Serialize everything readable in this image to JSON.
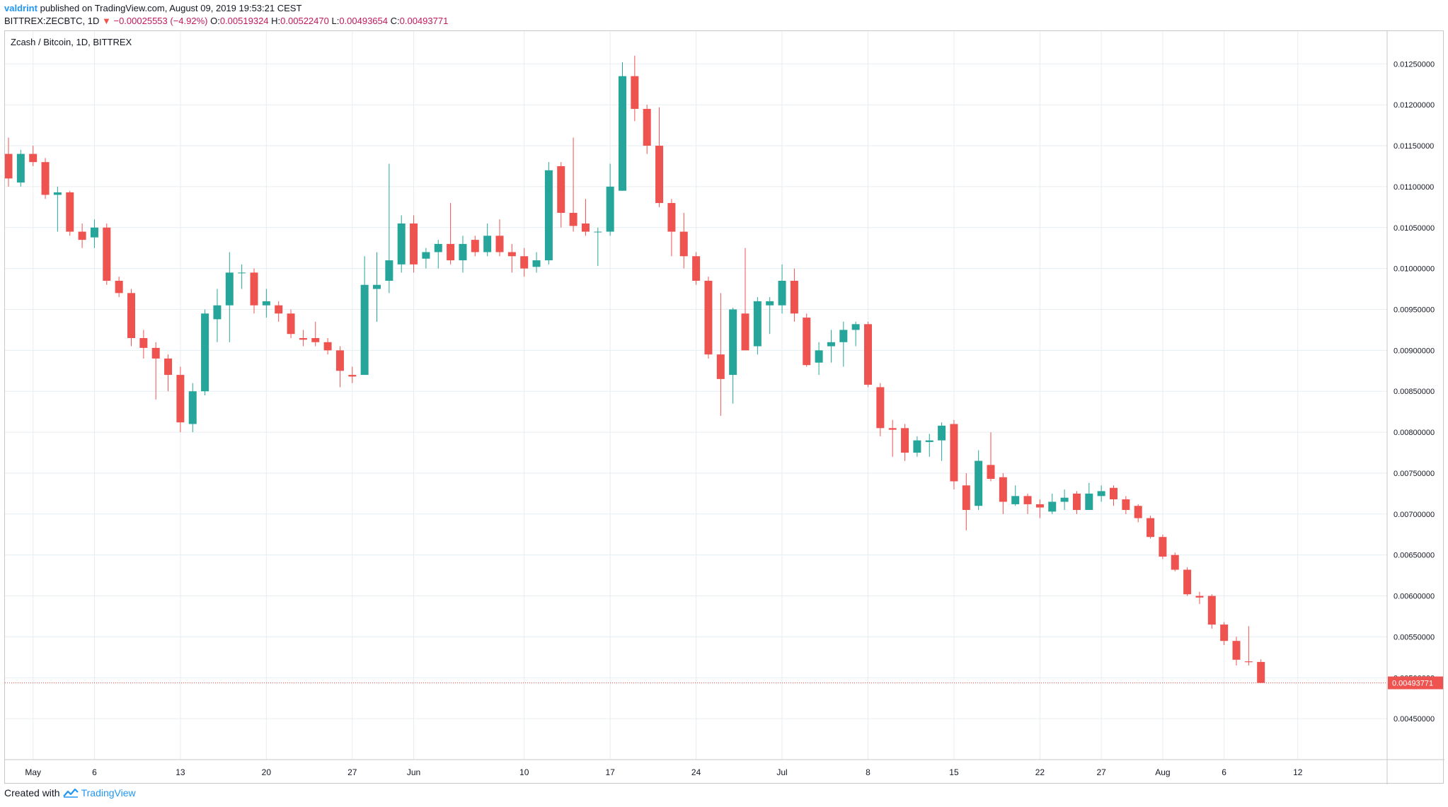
{
  "header": {
    "author": "valdrint",
    "published": "published on TradingView.com, August 09, 2019 19:53:21 CEST"
  },
  "info": {
    "symbol": "BITTREX:ZECBTC, 1D",
    "change": "−0.00025553 (−4.92%)",
    "o_label": "O:",
    "o_value": "0.00519324",
    "h_label": "H:",
    "h_value": "0.00522470",
    "l_label": "L:",
    "l_value": "0.00493654",
    "c_label": "C:",
    "c_value": "0.00493771"
  },
  "footer": {
    "created_with": "Created with",
    "brand": "TradingView"
  },
  "colors": {
    "up": "#26a69a",
    "down": "#ef5350",
    "grid": "#e6eef2",
    "price_line": "#ef5350"
  },
  "chart_data": {
    "type": "candlestick",
    "title": "Zcash / Bitcoin, 1D, BITTREX",
    "ylim": [
      0.004,
      0.0129
    ],
    "y_ticks": [
      0.0045,
      0.005,
      0.0055,
      0.006,
      0.0065,
      0.007,
      0.0075,
      0.008,
      0.0085,
      0.009,
      0.0095,
      0.01,
      0.0105,
      0.011,
      0.0115,
      0.012,
      0.0125
    ],
    "y_tick_labels": [
      "0.00450000",
      "0.00500000",
      "0.00550000",
      "0.00600000",
      "0.00650000",
      "0.00700000",
      "0.00750000",
      "0.00800000",
      "0.00850000",
      "0.00900000",
      "0.00950000",
      "0.01000000",
      "0.01050000",
      "0.01100000",
      "0.01150000",
      "0.01200000",
      "0.01250000"
    ],
    "x_start": "2019-04-29",
    "x_ticks": [
      {
        "date": "2019-05-01",
        "label": "May"
      },
      {
        "date": "2019-05-06",
        "label": "6"
      },
      {
        "date": "2019-05-13",
        "label": "13"
      },
      {
        "date": "2019-05-20",
        "label": "20"
      },
      {
        "date": "2019-05-27",
        "label": "27"
      },
      {
        "date": "2019-06-01",
        "label": "Jun"
      },
      {
        "date": "2019-06-10",
        "label": "10"
      },
      {
        "date": "2019-06-17",
        "label": "17"
      },
      {
        "date": "2019-06-24",
        "label": "24"
      },
      {
        "date": "2019-07-01",
        "label": "Jul"
      },
      {
        "date": "2019-07-08",
        "label": "8"
      },
      {
        "date": "2019-07-15",
        "label": "15"
      },
      {
        "date": "2019-07-22",
        "label": "22"
      },
      {
        "date": "2019-07-27",
        "label": "27"
      },
      {
        "date": "2019-08-01",
        "label": "Aug"
      },
      {
        "date": "2019-08-06",
        "label": "6"
      },
      {
        "date": "2019-08-12",
        "label": "12"
      }
    ],
    "last_price": 0.00493771,
    "last_price_label": "0.00493771",
    "candles": [
      {
        "d": "2019-04-29",
        "o": 0.0114,
        "h": 0.0116,
        "l": 0.011,
        "c": 0.0111
      },
      {
        "d": "2019-04-30",
        "o": 0.01105,
        "h": 0.01145,
        "l": 0.011,
        "c": 0.0114
      },
      {
        "d": "2019-05-01",
        "o": 0.0114,
        "h": 0.0115,
        "l": 0.01125,
        "c": 0.0113
      },
      {
        "d": "2019-05-02",
        "o": 0.0113,
        "h": 0.01135,
        "l": 0.01085,
        "c": 0.0109
      },
      {
        "d": "2019-05-03",
        "o": 0.0109,
        "h": 0.011,
        "l": 0.01045,
        "c": 0.01093
      },
      {
        "d": "2019-05-04",
        "o": 0.01093,
        "h": 0.01095,
        "l": 0.0104,
        "c": 0.01045
      },
      {
        "d": "2019-05-05",
        "o": 0.01045,
        "h": 0.01055,
        "l": 0.01025,
        "c": 0.01035
      },
      {
        "d": "2019-05-06",
        "o": 0.01038,
        "h": 0.0106,
        "l": 0.01025,
        "c": 0.0105
      },
      {
        "d": "2019-05-07",
        "o": 0.0105,
        "h": 0.01055,
        "l": 0.0098,
        "c": 0.00985
      },
      {
        "d": "2019-05-08",
        "o": 0.00985,
        "h": 0.0099,
        "l": 0.00965,
        "c": 0.0097
      },
      {
        "d": "2019-05-09",
        "o": 0.0097,
        "h": 0.00975,
        "l": 0.00905,
        "c": 0.00915
      },
      {
        "d": "2019-05-10",
        "o": 0.00915,
        "h": 0.00925,
        "l": 0.0089,
        "c": 0.00903
      },
      {
        "d": "2019-05-11",
        "o": 0.00903,
        "h": 0.0091,
        "l": 0.0084,
        "c": 0.0089
      },
      {
        "d": "2019-05-12",
        "o": 0.0089,
        "h": 0.00895,
        "l": 0.0085,
        "c": 0.0087
      },
      {
        "d": "2019-05-13",
        "o": 0.0087,
        "h": 0.0088,
        "l": 0.008,
        "c": 0.00812
      },
      {
        "d": "2019-05-14",
        "o": 0.0081,
        "h": 0.0086,
        "l": 0.008,
        "c": 0.0085
      },
      {
        "d": "2019-05-15",
        "o": 0.0085,
        "h": 0.0095,
        "l": 0.00845,
        "c": 0.00945
      },
      {
        "d": "2019-05-16",
        "o": 0.00938,
        "h": 0.00975,
        "l": 0.0091,
        "c": 0.00955
      },
      {
        "d": "2019-05-17",
        "o": 0.00955,
        "h": 0.0102,
        "l": 0.0091,
        "c": 0.00995
      },
      {
        "d": "2019-05-18",
        "o": 0.00995,
        "h": 0.01005,
        "l": 0.00975,
        "c": 0.00995
      },
      {
        "d": "2019-05-19",
        "o": 0.00995,
        "h": 0.01,
        "l": 0.00945,
        "c": 0.00955
      },
      {
        "d": "2019-05-20",
        "o": 0.00955,
        "h": 0.00975,
        "l": 0.0094,
        "c": 0.0096
      },
      {
        "d": "2019-05-21",
        "o": 0.00955,
        "h": 0.0096,
        "l": 0.00935,
        "c": 0.00945
      },
      {
        "d": "2019-05-22",
        "o": 0.00945,
        "h": 0.0095,
        "l": 0.00915,
        "c": 0.0092
      },
      {
        "d": "2019-05-23",
        "o": 0.00915,
        "h": 0.00925,
        "l": 0.00905,
        "c": 0.00913
      },
      {
        "d": "2019-05-24",
        "o": 0.00915,
        "h": 0.00935,
        "l": 0.00905,
        "c": 0.0091
      },
      {
        "d": "2019-05-25",
        "o": 0.0091,
        "h": 0.00915,
        "l": 0.00895,
        "c": 0.009
      },
      {
        "d": "2019-05-26",
        "o": 0.009,
        "h": 0.00905,
        "l": 0.00855,
        "c": 0.00875
      },
      {
        "d": "2019-05-27",
        "o": 0.0087,
        "h": 0.0088,
        "l": 0.0086,
        "c": 0.00868
      },
      {
        "d": "2019-05-28",
        "o": 0.0087,
        "h": 0.01015,
        "l": 0.0087,
        "c": 0.0098
      },
      {
        "d": "2019-05-29",
        "o": 0.00975,
        "h": 0.0102,
        "l": 0.00935,
        "c": 0.0098
      },
      {
        "d": "2019-05-30",
        "o": 0.00985,
        "h": 0.01128,
        "l": 0.0097,
        "c": 0.0101
      },
      {
        "d": "2019-05-31",
        "o": 0.01005,
        "h": 0.01065,
        "l": 0.00995,
        "c": 0.01055
      },
      {
        "d": "2019-06-01",
        "o": 0.01055,
        "h": 0.01065,
        "l": 0.00995,
        "c": 0.01005
      },
      {
        "d": "2019-06-02",
        "o": 0.01012,
        "h": 0.01025,
        "l": 0.01,
        "c": 0.0102
      },
      {
        "d": "2019-06-03",
        "o": 0.0102,
        "h": 0.01035,
        "l": 0.01,
        "c": 0.0103
      },
      {
        "d": "2019-06-04",
        "o": 0.0103,
        "h": 0.0108,
        "l": 0.01005,
        "c": 0.0101
      },
      {
        "d": "2019-06-05",
        "o": 0.0101,
        "h": 0.0104,
        "l": 0.00995,
        "c": 0.0103
      },
      {
        "d": "2019-06-06",
        "o": 0.01035,
        "h": 0.0104,
        "l": 0.01015,
        "c": 0.0102
      },
      {
        "d": "2019-06-07",
        "o": 0.0102,
        "h": 0.01055,
        "l": 0.01015,
        "c": 0.0104
      },
      {
        "d": "2019-06-08",
        "o": 0.0104,
        "h": 0.0106,
        "l": 0.01015,
        "c": 0.0102
      },
      {
        "d": "2019-06-09",
        "o": 0.0102,
        "h": 0.0103,
        "l": 0.00995,
        "c": 0.01015
      },
      {
        "d": "2019-06-10",
        "o": 0.01015,
        "h": 0.01025,
        "l": 0.0099,
        "c": 0.01
      },
      {
        "d": "2019-06-11",
        "o": 0.01002,
        "h": 0.0102,
        "l": 0.00995,
        "c": 0.0101
      },
      {
        "d": "2019-06-12",
        "o": 0.0101,
        "h": 0.0113,
        "l": 0.01005,
        "c": 0.0112
      },
      {
        "d": "2019-06-13",
        "o": 0.01125,
        "h": 0.0113,
        "l": 0.0105,
        "c": 0.01068
      },
      {
        "d": "2019-06-14",
        "o": 0.01068,
        "h": 0.0116,
        "l": 0.01045,
        "c": 0.01052
      },
      {
        "d": "2019-06-15",
        "o": 0.01055,
        "h": 0.01085,
        "l": 0.0104,
        "c": 0.01045
      },
      {
        "d": "2019-06-16",
        "o": 0.01045,
        "h": 0.0105,
        "l": 0.01003,
        "c": 0.01045
      },
      {
        "d": "2019-06-17",
        "o": 0.01045,
        "h": 0.01128,
        "l": 0.0104,
        "c": 0.011
      },
      {
        "d": "2019-06-18",
        "o": 0.01095,
        "h": 0.01252,
        "l": 0.01095,
        "c": 0.01235
      },
      {
        "d": "2019-06-19",
        "o": 0.01235,
        "h": 0.0126,
        "l": 0.0118,
        "c": 0.01195
      },
      {
        "d": "2019-06-20",
        "o": 0.01195,
        "h": 0.012,
        "l": 0.0114,
        "c": 0.0115
      },
      {
        "d": "2019-06-21",
        "o": 0.0115,
        "h": 0.01197,
        "l": 0.01075,
        "c": 0.0108
      },
      {
        "d": "2019-06-22",
        "o": 0.0108,
        "h": 0.01085,
        "l": 0.01015,
        "c": 0.01045
      },
      {
        "d": "2019-06-23",
        "o": 0.01045,
        "h": 0.01068,
        "l": 0.01,
        "c": 0.01015
      },
      {
        "d": "2019-06-24",
        "o": 0.01015,
        "h": 0.0102,
        "l": 0.0098,
        "c": 0.00985
      },
      {
        "d": "2019-06-25",
        "o": 0.00985,
        "h": 0.0099,
        "l": 0.0089,
        "c": 0.00895
      },
      {
        "d": "2019-06-26",
        "o": 0.00895,
        "h": 0.0097,
        "l": 0.0082,
        "c": 0.00865
      },
      {
        "d": "2019-06-27",
        "o": 0.0087,
        "h": 0.00952,
        "l": 0.00835,
        "c": 0.0095
      },
      {
        "d": "2019-06-28",
        "o": 0.00945,
        "h": 0.01025,
        "l": 0.009,
        "c": 0.009
      },
      {
        "d": "2019-06-29",
        "o": 0.00905,
        "h": 0.00965,
        "l": 0.00895,
        "c": 0.0096
      },
      {
        "d": "2019-06-30",
        "o": 0.00955,
        "h": 0.00965,
        "l": 0.0092,
        "c": 0.0096
      },
      {
        "d": "2019-07-01",
        "o": 0.00955,
        "h": 0.01005,
        "l": 0.00945,
        "c": 0.00985
      },
      {
        "d": "2019-07-02",
        "o": 0.00985,
        "h": 0.01,
        "l": 0.00935,
        "c": 0.00945
      },
      {
        "d": "2019-07-03",
        "o": 0.0094,
        "h": 0.00945,
        "l": 0.0088,
        "c": 0.00882
      },
      {
        "d": "2019-07-04",
        "o": 0.00885,
        "h": 0.0091,
        "l": 0.0087,
        "c": 0.009
      },
      {
        "d": "2019-07-05",
        "o": 0.00905,
        "h": 0.00925,
        "l": 0.00885,
        "c": 0.0091
      },
      {
        "d": "2019-07-06",
        "o": 0.0091,
        "h": 0.00935,
        "l": 0.0088,
        "c": 0.00925
      },
      {
        "d": "2019-07-07",
        "o": 0.00925,
        "h": 0.00935,
        "l": 0.00905,
        "c": 0.00932
      },
      {
        "d": "2019-07-08",
        "o": 0.00932,
        "h": 0.00935,
        "l": 0.00855,
        "c": 0.00858
      },
      {
        "d": "2019-07-09",
        "o": 0.00855,
        "h": 0.0086,
        "l": 0.00795,
        "c": 0.00805
      },
      {
        "d": "2019-07-10",
        "o": 0.00805,
        "h": 0.00815,
        "l": 0.0077,
        "c": 0.00803
      },
      {
        "d": "2019-07-11",
        "o": 0.00805,
        "h": 0.0081,
        "l": 0.00765,
        "c": 0.00775
      },
      {
        "d": "2019-07-12",
        "o": 0.00775,
        "h": 0.00795,
        "l": 0.0077,
        "c": 0.0079
      },
      {
        "d": "2019-07-13",
        "o": 0.00788,
        "h": 0.00798,
        "l": 0.0077,
        "c": 0.0079
      },
      {
        "d": "2019-07-14",
        "o": 0.0079,
        "h": 0.00812,
        "l": 0.00765,
        "c": 0.00808
      },
      {
        "d": "2019-07-15",
        "o": 0.0081,
        "h": 0.00815,
        "l": 0.0073,
        "c": 0.0074
      },
      {
        "d": "2019-07-16",
        "o": 0.00735,
        "h": 0.0075,
        "l": 0.0068,
        "c": 0.00705
      },
      {
        "d": "2019-07-17",
        "o": 0.0071,
        "h": 0.00778,
        "l": 0.00705,
        "c": 0.00765
      },
      {
        "d": "2019-07-18",
        "o": 0.0076,
        "h": 0.008,
        "l": 0.0074,
        "c": 0.00743
      },
      {
        "d": "2019-07-19",
        "o": 0.00745,
        "h": 0.0075,
        "l": 0.007,
        "c": 0.00715
      },
      {
        "d": "2019-07-20",
        "o": 0.00712,
        "h": 0.00735,
        "l": 0.0071,
        "c": 0.00722
      },
      {
        "d": "2019-07-21",
        "o": 0.00722,
        "h": 0.00725,
        "l": 0.007,
        "c": 0.00712
      },
      {
        "d": "2019-07-22",
        "o": 0.00712,
        "h": 0.00718,
        "l": 0.00695,
        "c": 0.00708
      },
      {
        "d": "2019-07-23",
        "o": 0.00703,
        "h": 0.00725,
        "l": 0.007,
        "c": 0.00715
      },
      {
        "d": "2019-07-24",
        "o": 0.00715,
        "h": 0.0073,
        "l": 0.00705,
        "c": 0.0072
      },
      {
        "d": "2019-07-25",
        "o": 0.00725,
        "h": 0.00728,
        "l": 0.007,
        "c": 0.00705
      },
      {
        "d": "2019-07-26",
        "o": 0.00705,
        "h": 0.00738,
        "l": 0.00705,
        "c": 0.00725
      },
      {
        "d": "2019-07-27",
        "o": 0.00722,
        "h": 0.00735,
        "l": 0.00715,
        "c": 0.00728
      },
      {
        "d": "2019-07-28",
        "o": 0.00732,
        "h": 0.00735,
        "l": 0.0071,
        "c": 0.00718
      },
      {
        "d": "2019-07-29",
        "o": 0.00718,
        "h": 0.00722,
        "l": 0.007,
        "c": 0.00705
      },
      {
        "d": "2019-07-30",
        "o": 0.0071,
        "h": 0.00712,
        "l": 0.0069,
        "c": 0.00695
      },
      {
        "d": "2019-07-31",
        "o": 0.00695,
        "h": 0.00698,
        "l": 0.0067,
        "c": 0.00672
      },
      {
        "d": "2019-08-01",
        "o": 0.00672,
        "h": 0.00675,
        "l": 0.00645,
        "c": 0.00648
      },
      {
        "d": "2019-08-02",
        "o": 0.0065,
        "h": 0.00653,
        "l": 0.0063,
        "c": 0.00632
      },
      {
        "d": "2019-08-03",
        "o": 0.00632,
        "h": 0.00635,
        "l": 0.006,
        "c": 0.00602
      },
      {
        "d": "2019-08-04",
        "o": 0.006,
        "h": 0.00605,
        "l": 0.0059,
        "c": 0.00598
      },
      {
        "d": "2019-08-05",
        "o": 0.006,
        "h": 0.00602,
        "l": 0.0056,
        "c": 0.00565
      },
      {
        "d": "2019-08-06",
        "o": 0.00565,
        "h": 0.00568,
        "l": 0.0054,
        "c": 0.00545
      },
      {
        "d": "2019-08-07",
        "o": 0.00545,
        "h": 0.0055,
        "l": 0.00515,
        "c": 0.00522
      },
      {
        "d": "2019-08-08",
        "o": 0.0052,
        "h": 0.00563,
        "l": 0.00515,
        "c": 0.00519
      },
      {
        "d": "2019-08-09",
        "o": 0.00519324,
        "h": 0.0052247,
        "l": 0.00493654,
        "c": 0.00493771
      }
    ]
  }
}
